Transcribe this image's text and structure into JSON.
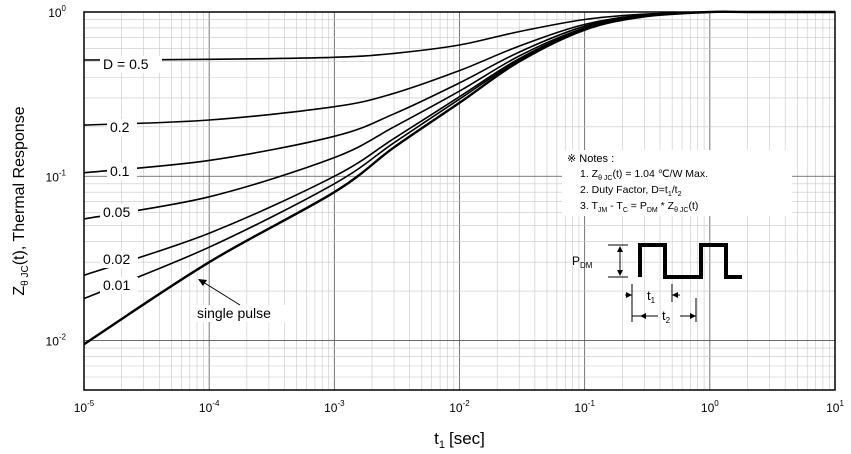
{
  "chart_data": {
    "type": "line",
    "xscale": "log",
    "yscale": "log",
    "xlim": [
      1e-05,
      10
    ],
    "ylim": [
      0.005,
      1
    ],
    "xlabel": "t",
    "xlabel_sub": "1",
    "xlabel_unit": "[sec]",
    "ylabel": "Z",
    "ylabel_sub": "θ JC",
    "ylabel_rest": "(t), Thermal Response",
    "x_ticks": [
      {
        "value": 1e-05,
        "base": "10",
        "exp": "-5"
      },
      {
        "value": 0.0001,
        "base": "10",
        "exp": "-4"
      },
      {
        "value": 0.001,
        "base": "10",
        "exp": "-3"
      },
      {
        "value": 0.01,
        "base": "10",
        "exp": "-2"
      },
      {
        "value": 0.1,
        "base": "10",
        "exp": "-1"
      },
      {
        "value": 1,
        "base": "10",
        "exp": "0"
      },
      {
        "value": 10,
        "base": "10",
        "exp": "1"
      }
    ],
    "y_ticks": [
      {
        "value": 0.01,
        "base": "10",
        "exp": "-2"
      },
      {
        "value": 0.1,
        "base": "10",
        "exp": "-1"
      },
      {
        "value": 1,
        "base": "10",
        "exp": "0"
      }
    ],
    "grid": true,
    "series": [
      {
        "name": "D = 0.5",
        "x": [
          1e-05,
          0.0001,
          0.001,
          0.003,
          0.01,
          0.03,
          0.1,
          0.3,
          1,
          2
        ],
        "y": [
          0.51,
          0.515,
          0.53,
          0.56,
          0.63,
          0.76,
          0.9,
          0.97,
          1.0,
          1.0
        ]
      },
      {
        "name": "0.2",
        "x": [
          1e-05,
          0.0001,
          0.001,
          0.003,
          0.01,
          0.03,
          0.1,
          0.3,
          1,
          2
        ],
        "y": [
          0.205,
          0.22,
          0.265,
          0.32,
          0.44,
          0.62,
          0.84,
          0.96,
          1.0,
          1.0
        ]
      },
      {
        "name": "0.1",
        "x": [
          1e-05,
          0.0001,
          0.001,
          0.003,
          0.01,
          0.03,
          0.1,
          0.3,
          1,
          2
        ],
        "y": [
          0.105,
          0.125,
          0.175,
          0.24,
          0.37,
          0.57,
          0.82,
          0.955,
          1.0,
          1.0
        ]
      },
      {
        "name": "0.05",
        "x": [
          1e-05,
          0.0001,
          0.001,
          0.003,
          0.01,
          0.03,
          0.1,
          0.3,
          1,
          2
        ],
        "y": [
          0.055,
          0.075,
          0.13,
          0.2,
          0.33,
          0.54,
          0.8,
          0.95,
          1.0,
          1.0
        ]
      },
      {
        "name": "0.02",
        "x": [
          1e-05,
          0.0001,
          0.001,
          0.003,
          0.01,
          0.03,
          0.1,
          0.3,
          1,
          2
        ],
        "y": [
          0.025,
          0.045,
          0.1,
          0.17,
          0.305,
          0.52,
          0.79,
          0.945,
          1.0,
          1.0
        ]
      },
      {
        "name": "0.01",
        "x": [
          1e-05,
          0.0001,
          0.001,
          0.003,
          0.01,
          0.03,
          0.1,
          0.3,
          1,
          2
        ],
        "y": [
          0.018,
          0.037,
          0.09,
          0.16,
          0.295,
          0.51,
          0.785,
          0.94,
          1.0,
          1.0
        ]
      },
      {
        "name": "single pulse",
        "x": [
          1e-05,
          0.0001,
          0.001,
          0.003,
          0.01,
          0.03,
          0.1,
          0.3,
          1,
          2
        ],
        "y": [
          0.0095,
          0.03,
          0.08,
          0.15,
          0.28,
          0.5,
          0.78,
          0.94,
          1.0,
          1.0
        ]
      }
    ],
    "annotations": {
      "notes_title": "※ Notes :",
      "note1_prefix": "1. Z",
      "note1_sub": "θ JC",
      "note1_rest": "(t) = 1.04 ℃/W Max.",
      "note2_prefix": "2. Duty Factor, D=t",
      "note2_sub1": "1",
      "note2_mid": "/t",
      "note2_sub2": "2",
      "note3_prefix": "3. T",
      "note3_sub1": "JM",
      "note3_mid1": " - T",
      "note3_sub2": "C",
      "note3_mid2": " = P",
      "note3_sub3": "DM",
      "note3_mid3": " * Z",
      "note3_sub4": "θ JC",
      "note3_end": "(t)",
      "pdm_label": "P",
      "pdm_sub": "DM",
      "t1_label": "t",
      "t1_sub": "1",
      "t2_label": "t",
      "t2_sub": "2"
    }
  }
}
